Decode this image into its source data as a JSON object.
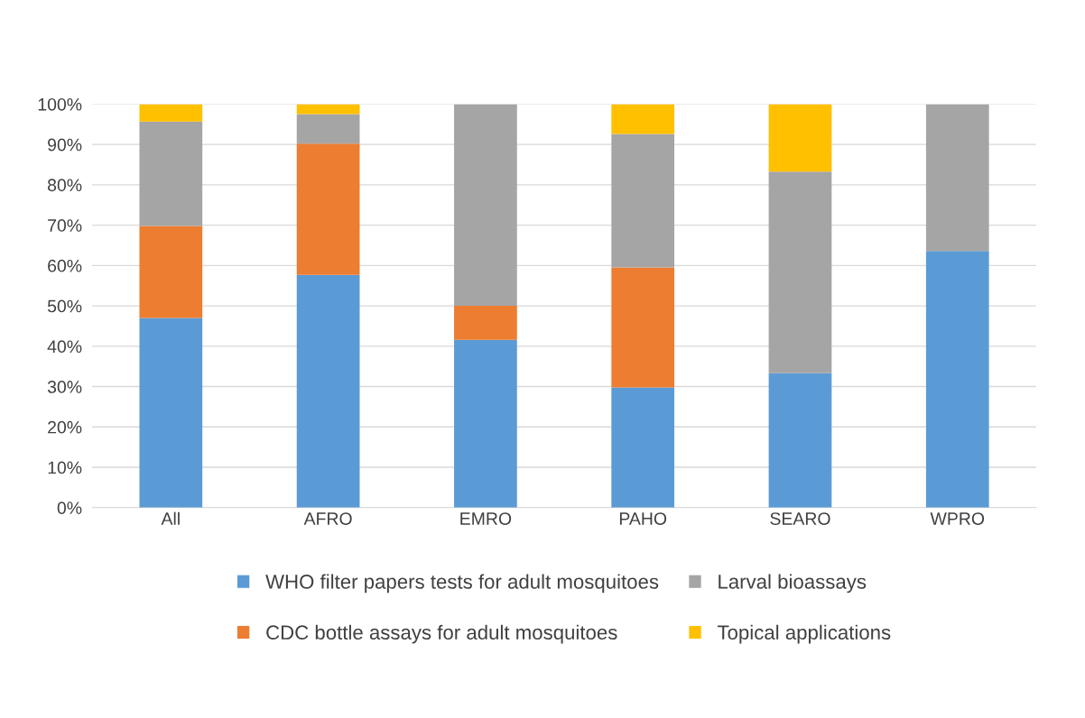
{
  "chart_data": {
    "type": "bar",
    "stacked": true,
    "categories": [
      "All",
      "AFRO",
      "EMRO",
      "PAHO",
      "SEARO",
      "WPRO"
    ],
    "series": [
      {
        "name": "WHO filter papers tests for adult mosquitoes",
        "color": "#5b9bd5",
        "values": [
          47.0,
          57.7,
          41.6,
          29.8,
          33.3,
          63.6
        ]
      },
      {
        "name": "CDC bottle assays for adult mosquitoes",
        "color": "#ed7d31",
        "values": [
          22.8,
          32.5,
          8.4,
          29.7,
          0,
          0
        ]
      },
      {
        "name": "Larval bioassays",
        "color": "#a5a5a5",
        "values": [
          25.9,
          7.3,
          50.0,
          33.1,
          50.0,
          36.4
        ]
      },
      {
        "name": "Topical applications",
        "color": "#ffc000",
        "values": [
          4.3,
          2.5,
          0,
          7.4,
          16.7,
          0
        ]
      }
    ],
    "ylim": [
      0,
      100
    ],
    "yticks": [
      {
        "value": 0,
        "label": "0%"
      },
      {
        "value": 10,
        "label": "10%"
      },
      {
        "value": 20,
        "label": "20%"
      },
      {
        "value": 30,
        "label": "30%"
      },
      {
        "value": 40,
        "label": "40%"
      },
      {
        "value": 50,
        "label": "50%"
      },
      {
        "value": 60,
        "label": "60%"
      },
      {
        "value": 70,
        "label": "70%"
      },
      {
        "value": 80,
        "label": "80%"
      },
      {
        "value": 90,
        "label": "90%"
      },
      {
        "value": 100,
        "label": "100%"
      }
    ],
    "grid": "y",
    "legend": "bottom"
  }
}
